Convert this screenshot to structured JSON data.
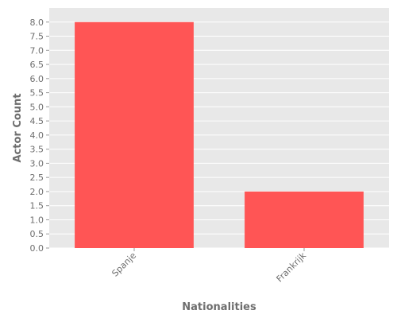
{
  "chart_data": {
    "type": "bar",
    "categories": [
      "Spanje",
      "Frankrijk"
    ],
    "values": [
      8,
      2
    ],
    "title": "",
    "xlabel": "Nationalities",
    "ylabel": "Actor Count",
    "ylim": [
      0,
      8.5
    ],
    "yticks": [
      "0.0",
      "0.5",
      "1.0",
      "1.5",
      "2.0",
      "2.5",
      "3.0",
      "3.5",
      "4.0",
      "4.5",
      "5.0",
      "5.5",
      "6.0",
      "6.5",
      "7.0",
      "7.5",
      "8.0"
    ],
    "grid": true,
    "legend": "none",
    "colors": {
      "bar": "#ff5555",
      "panel_background": "#e8e8e8",
      "grid": "#ffffff",
      "text": "#6e6e6e"
    }
  }
}
